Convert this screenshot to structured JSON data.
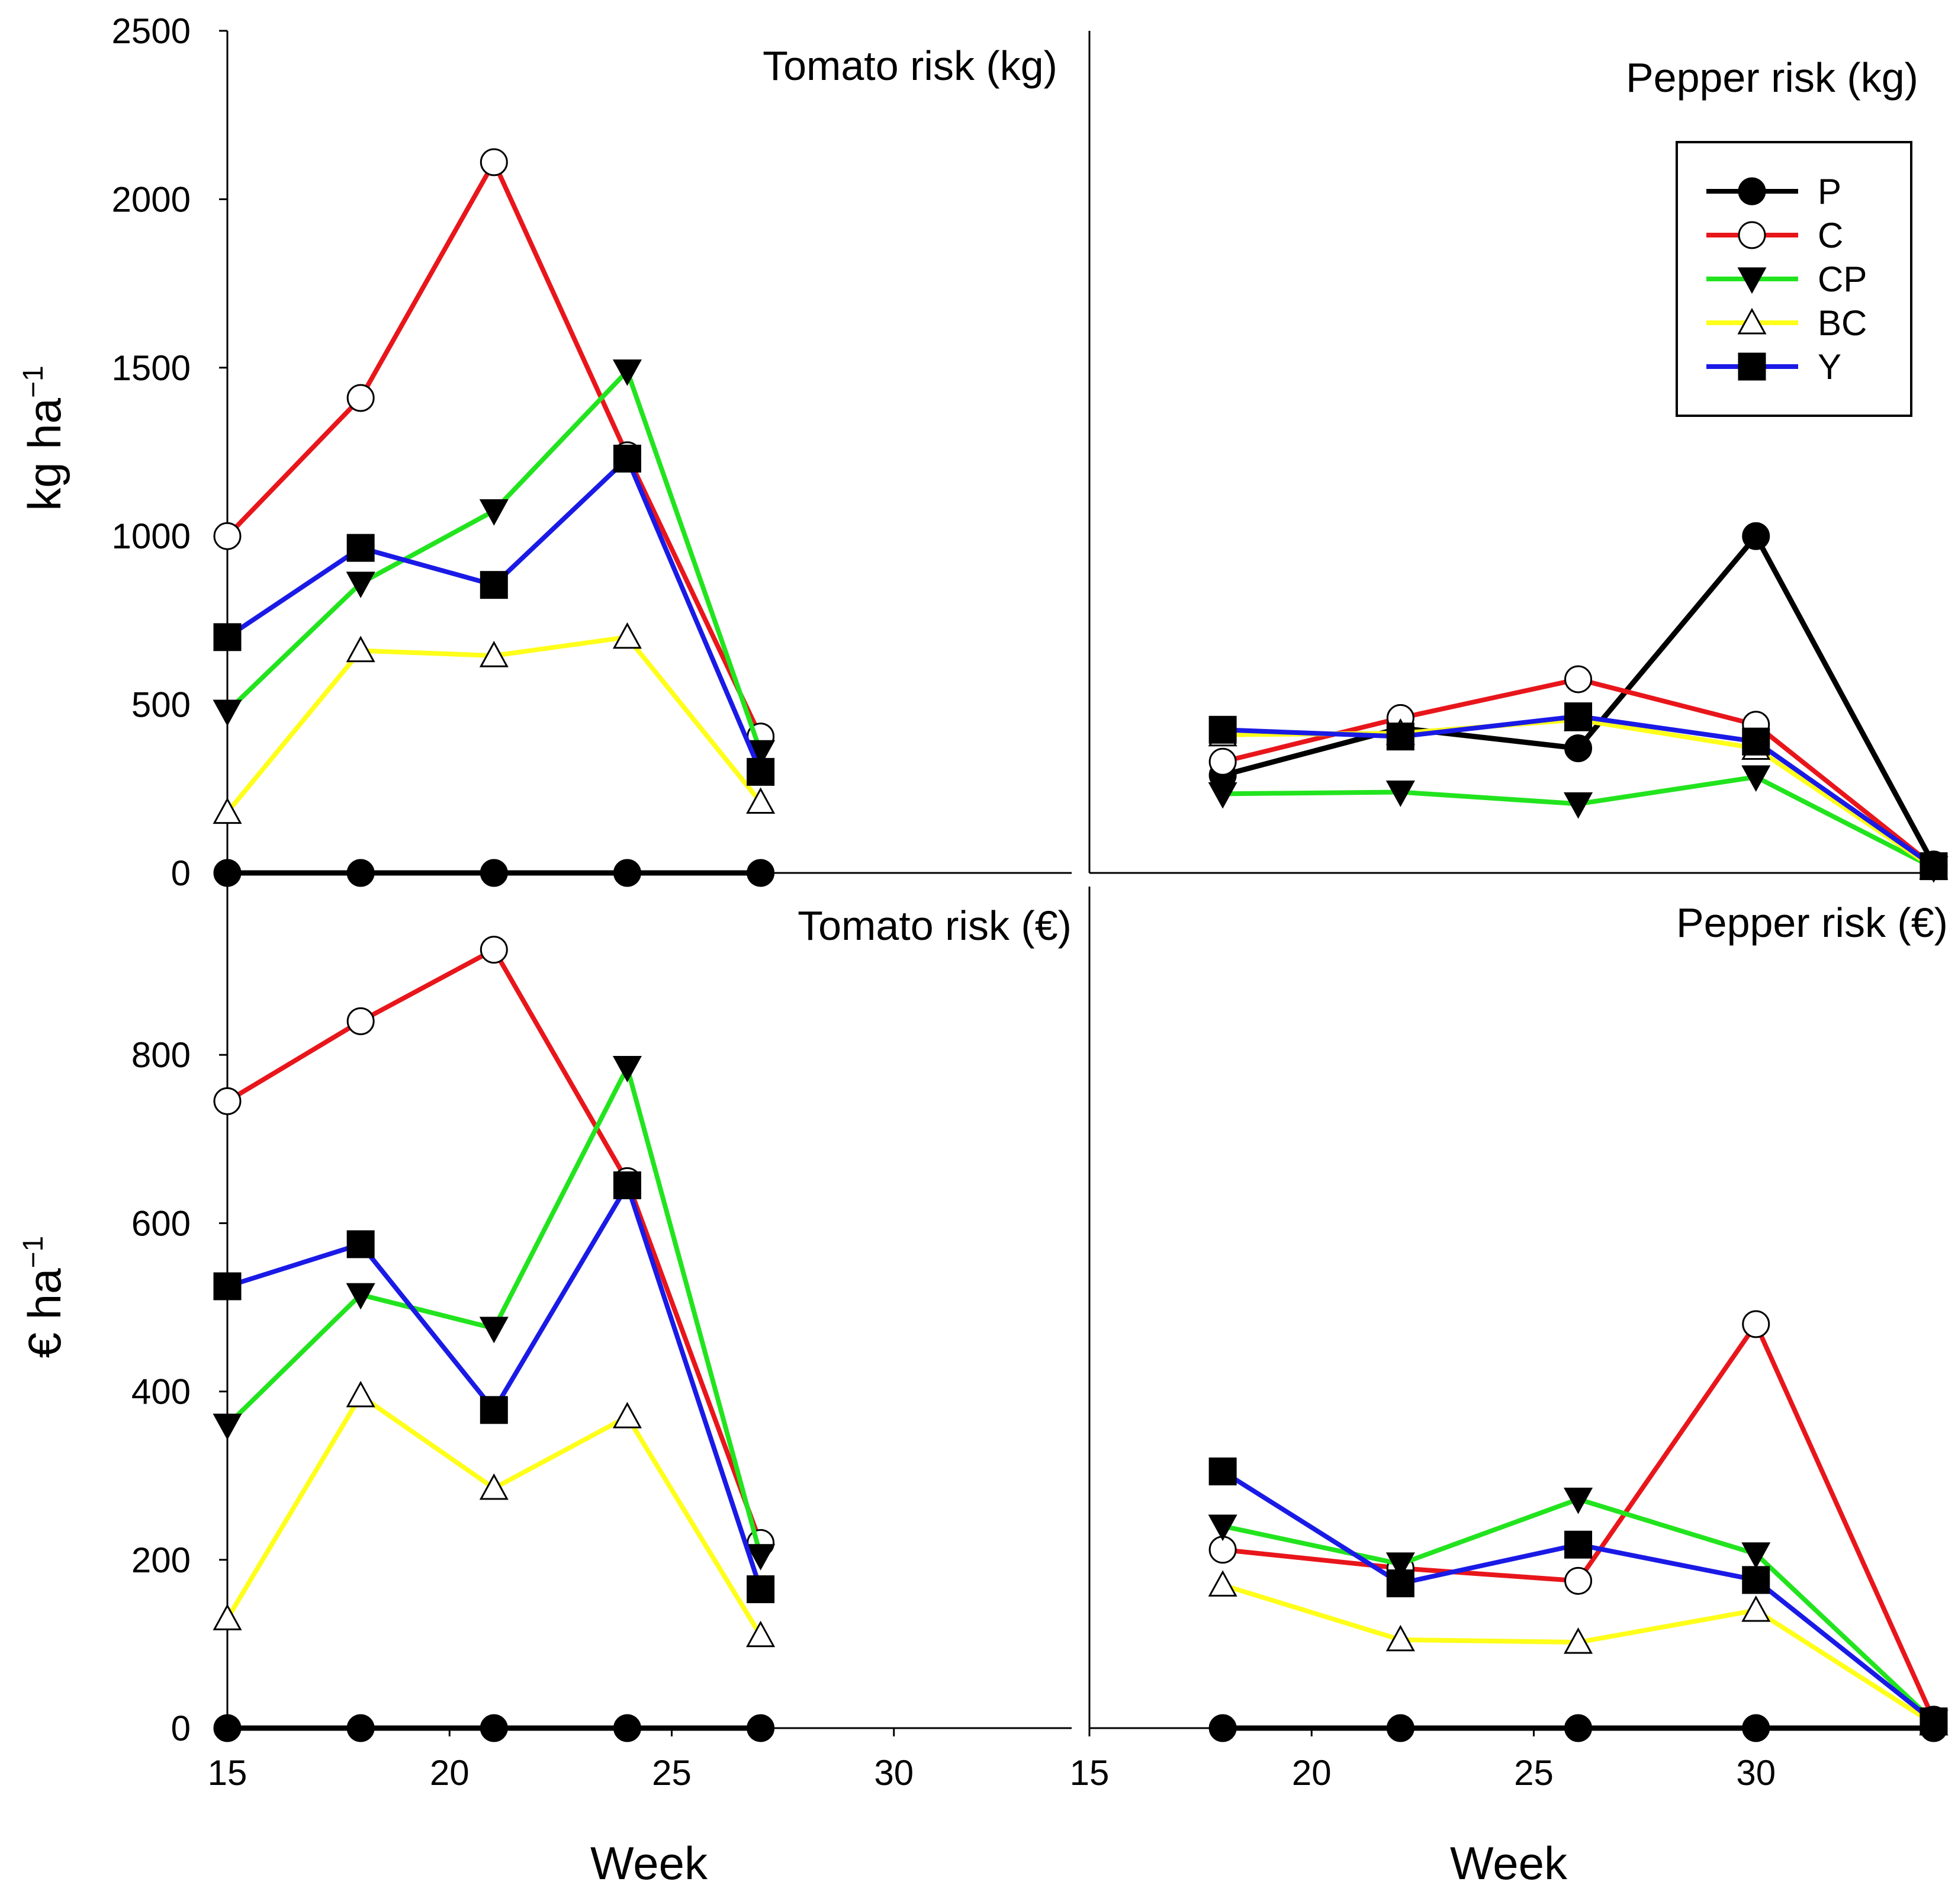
{
  "series_styles": [
    {
      "key": "P",
      "color": "#000000",
      "marker": "circle",
      "fill": "#000000"
    },
    {
      "key": "C",
      "color": "#e8161b",
      "marker": "circle",
      "fill": "#ffffff"
    },
    {
      "key": "CP",
      "color": "#22e41e",
      "marker": "triangle-down",
      "fill": "#000000"
    },
    {
      "key": "BC",
      "color": "#ffff1a",
      "marker": "triangle-up",
      "fill": "#ffffff"
    },
    {
      "key": "Y",
      "color": "#1a1ae6",
      "marker": "square",
      "fill": "#000000"
    }
  ],
  "legend": {
    "position": "top-right of Pepper risk (kg) panel",
    "entries": [
      "P",
      "C",
      "CP",
      "BC",
      "Y"
    ]
  },
  "xlabel_left": "Week",
  "xlabel_right": "Week",
  "ylabel_top": "kg ha",
  "ylabel_top_sup": "−1",
  "ylabel_bottom": "€ ha",
  "ylabel_bottom_sup": "−1",
  "chart_data": [
    {
      "type": "line",
      "panel": "top-left",
      "title": "Tomato risk (kg)",
      "xlabel": "",
      "ylabel": "kg ha−1",
      "xlim": [
        15,
        34
      ],
      "ylim": [
        0,
        2500
      ],
      "xticks": [],
      "yticks": [
        0,
        500,
        1000,
        1500,
        2000,
        2500
      ],
      "x": [
        15,
        18,
        21,
        24,
        27
      ],
      "series": [
        {
          "name": "P",
          "values": [
            0,
            0,
            0,
            0,
            0
          ]
        },
        {
          "name": "C",
          "values": [
            1000,
            1410,
            2110,
            1240,
            405
          ]
        },
        {
          "name": "CP",
          "values": [
            480,
            860,
            1075,
            1490,
            360
          ]
        },
        {
          "name": "BC",
          "values": [
            180,
            660,
            645,
            700,
            210
          ]
        },
        {
          "name": "Y",
          "values": [
            700,
            965,
            855,
            1230,
            300
          ]
        }
      ]
    },
    {
      "type": "line",
      "panel": "top-right",
      "title": "Pepper risk (kg)",
      "xlabel": "",
      "ylabel": "",
      "xlim": [
        15,
        34
      ],
      "ylim": [
        0,
        2500
      ],
      "xticks": [],
      "yticks": [],
      "x": [
        18,
        22,
        26,
        30,
        34
      ],
      "series": [
        {
          "name": "P",
          "values": [
            290,
            430,
            370,
            1000,
            25
          ]
        },
        {
          "name": "C",
          "values": [
            330,
            460,
            575,
            440,
            20
          ]
        },
        {
          "name": "CP",
          "values": [
            235,
            240,
            205,
            285,
            15
          ]
        },
        {
          "name": "BC",
          "values": [
            410,
            415,
            455,
            370,
            15
          ]
        },
        {
          "name": "Y",
          "values": [
            425,
            405,
            465,
            390,
            20
          ]
        }
      ]
    },
    {
      "type": "line",
      "panel": "bottom-left",
      "title": "Tomato risk (€)",
      "xlabel": "Week",
      "ylabel": "€ ha−1",
      "xlim": [
        15,
        34
      ],
      "ylim": [
        0,
        1000
      ],
      "xticks": [
        15,
        20,
        25,
        30
      ],
      "yticks": [
        0,
        200,
        400,
        600,
        800
      ],
      "x": [
        15,
        18,
        21,
        24,
        27
      ],
      "series": [
        {
          "name": "P",
          "values": [
            0,
            0,
            0,
            0,
            0
          ]
        },
        {
          "name": "C",
          "values": [
            745,
            840,
            925,
            650,
            220
          ]
        },
        {
          "name": "CP",
          "values": [
            360,
            515,
            475,
            785,
            205
          ]
        },
        {
          "name": "BC",
          "values": [
            130,
            395,
            285,
            370,
            110
          ]
        },
        {
          "name": "Y",
          "values": [
            525,
            575,
            378,
            645,
            165
          ]
        }
      ]
    },
    {
      "type": "line",
      "panel": "bottom-right",
      "title": "Pepper risk (€)",
      "xlabel": "Week",
      "ylabel": "",
      "xlim": [
        15,
        34
      ],
      "ylim": [
        0,
        1000
      ],
      "xticks": [
        15,
        20,
        25,
        30
      ],
      "yticks": [],
      "x": [
        18,
        22,
        26,
        30,
        34
      ],
      "series": [
        {
          "name": "P",
          "values": [
            0,
            0,
            0,
            0,
            0
          ]
        },
        {
          "name": "C",
          "values": [
            212,
            190,
            175,
            480,
            10
          ]
        },
        {
          "name": "CP",
          "values": [
            240,
            195,
            272,
            207,
            8
          ]
        },
        {
          "name": "BC",
          "values": [
            170,
            105,
            102,
            140,
            5
          ]
        },
        {
          "name": "Y",
          "values": [
            305,
            172,
            218,
            176,
            8
          ]
        }
      ]
    }
  ]
}
